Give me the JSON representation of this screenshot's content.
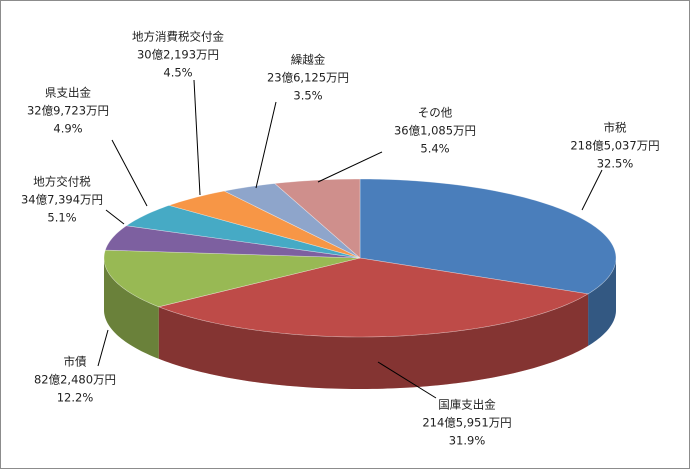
{
  "chart_data": {
    "type": "pie3d",
    "categories": [
      "市税",
      "国庫支出金",
      "市債",
      "地方交付税",
      "県支出金",
      "地方消費税交付金",
      "繰越金",
      "その他"
    ],
    "amounts": [
      "218億5,037万円",
      "214億5,951万円",
      "82億2,480万円",
      "34億7,394万円",
      "32億9,723万円",
      "30億2,193万円",
      "23億6,125万円",
      "36億1,085万円"
    ],
    "values": [
      32.5,
      31.9,
      12.2,
      5.1,
      4.9,
      4.5,
      3.5,
      5.4
    ],
    "value_labels": [
      "32.5%",
      "31.9%",
      "12.2%",
      "5.1%",
      "4.9%",
      "4.5%",
      "3.5%",
      "5.4%"
    ],
    "colors": [
      "#4a7ebb",
      "#be4b48",
      "#98b954",
      "#7d60a0",
      "#46aac5",
      "#f79646",
      "#8ea5cb",
      "#cf8f8c"
    ]
  }
}
